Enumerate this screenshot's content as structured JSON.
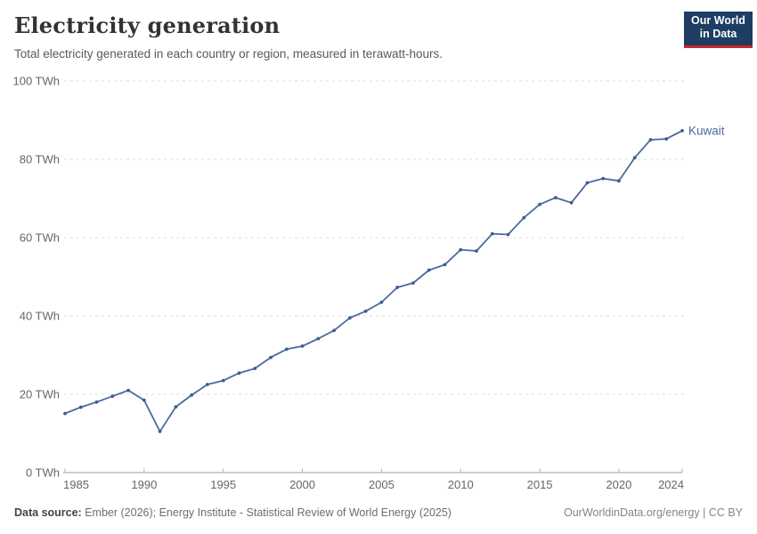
{
  "header": {
    "title": "Electricity generation",
    "subtitle": "Total electricity generated in each country or region, measured in terawatt-hours.",
    "logo": {
      "line1": "Our World",
      "line2": "in Data",
      "bg_color": "#1d3d63",
      "accent_color": "#c62828"
    }
  },
  "chart_data": {
    "type": "line",
    "title": "Electricity generation",
    "unit": "TWh",
    "x": [
      1985,
      1986,
      1987,
      1988,
      1989,
      1990,
      1991,
      1992,
      1993,
      1994,
      1995,
      1996,
      1997,
      1998,
      1999,
      2000,
      2001,
      2002,
      2003,
      2004,
      2005,
      2006,
      2007,
      2008,
      2009,
      2010,
      2011,
      2012,
      2013,
      2014,
      2015,
      2016,
      2017,
      2018,
      2019,
      2020,
      2021,
      2022,
      2023,
      2024
    ],
    "series": [
      {
        "name": "Kuwait",
        "color": "#4c6a9c",
        "marker_color": "#3f5d8e",
        "values": [
          15.1,
          16.7,
          18.0,
          19.5,
          21.0,
          18.5,
          10.5,
          16.8,
          19.8,
          22.5,
          23.5,
          25.4,
          26.6,
          29.4,
          31.5,
          32.3,
          34.2,
          36.3,
          39.5,
          41.2,
          43.5,
          47.3,
          48.4,
          51.7,
          53.1,
          56.9,
          56.6,
          61.0,
          60.8,
          65.1,
          68.5,
          70.2,
          68.9,
          74.0,
          75.1,
          74.5,
          80.4,
          85.0,
          85.2,
          87.3
        ]
      }
    ],
    "ylim": [
      0,
      100
    ],
    "yticks": [
      0,
      20,
      40,
      60,
      80,
      100
    ],
    "ytick_suffix": " TWh",
    "xticks": [
      1985,
      1990,
      1995,
      2000,
      2005,
      2010,
      2015,
      2020,
      2024
    ],
    "grid": "horizontal-dashed",
    "legend_position": "end-of-line",
    "end_label": "Kuwait",
    "axis_color": "#9e9e9e",
    "grid_color": "#dcdcdc",
    "tick_label_color": "#666666"
  },
  "footer": {
    "source_label": "Data source:",
    "source_text": " Ember (2026); Energy Institute - Statistical Review of World Energy (2025)",
    "credit": "OurWorldinData.org/energy | CC BY"
  }
}
